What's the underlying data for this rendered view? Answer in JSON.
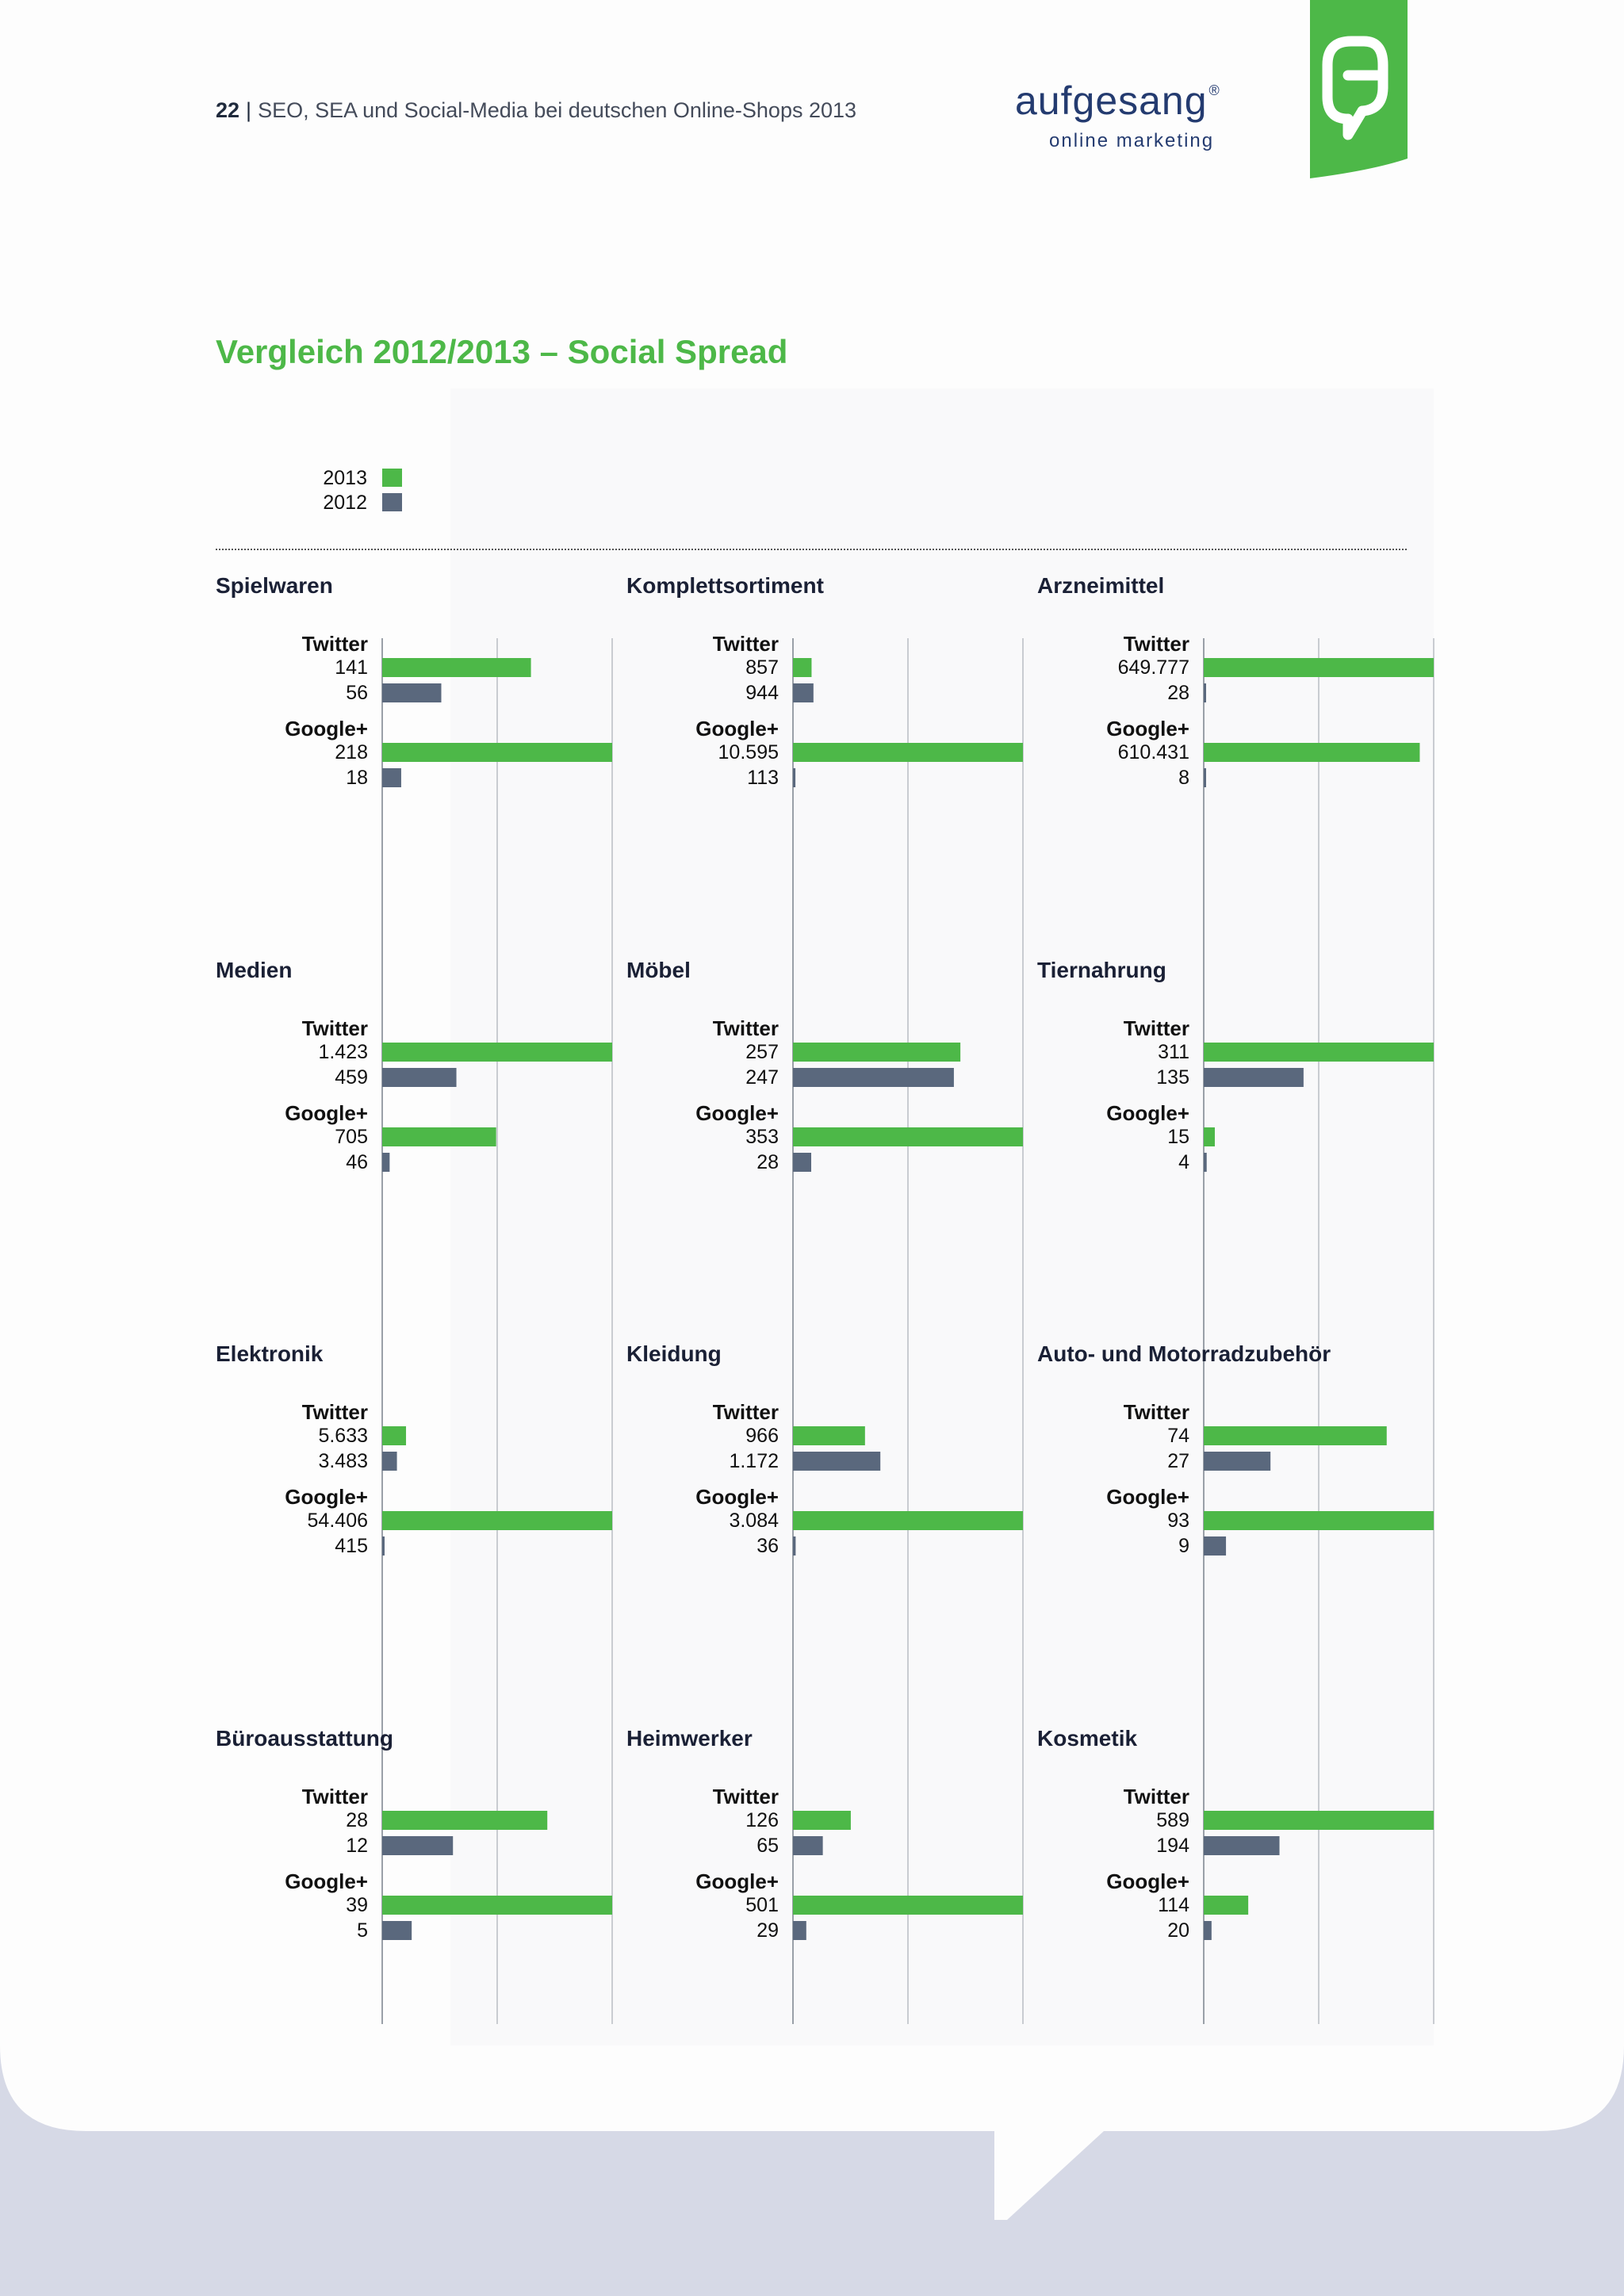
{
  "header": {
    "page_number": "22",
    "separator": "|",
    "document_title": "SEO, SEA und Social-Media bei deutschen Online-Shops 2013"
  },
  "logo": {
    "wordmark": "aufgesang",
    "registered": "®",
    "tagline": "online marketing",
    "badge_icon": "speech-bubble-a-icon"
  },
  "colors": {
    "accent_green": "#4db848",
    "series_2013": "#4db848",
    "series_2012": "#5a687d",
    "heading_navy": "#1a2035",
    "background_lavender": "#d6d9e6"
  },
  "title": "Vergleich 2012/2013 – Social Spread",
  "legend": [
    {
      "label": "2013",
      "color": "#4db848"
    },
    {
      "label": "2012",
      "color": "#5a687d"
    }
  ],
  "chart_data": [
    {
      "type": "bar",
      "orientation": "horizontal",
      "title": "Spielwaren",
      "groups": [
        {
          "name": "Twitter",
          "values": [
            {
              "series": "2013",
              "label": "141",
              "value": 141
            },
            {
              "series": "2012",
              "label": "56",
              "value": 56
            }
          ]
        },
        {
          "name": "Google+",
          "values": [
            {
              "series": "2013",
              "label": "218",
              "value": 218
            },
            {
              "series": "2012",
              "label": "18",
              "value": 18
            }
          ]
        }
      ],
      "xlim": [
        0,
        218
      ]
    },
    {
      "type": "bar",
      "orientation": "horizontal",
      "title": "Komplettsortiment",
      "groups": [
        {
          "name": "Twitter",
          "values": [
            {
              "series": "2013",
              "label": "857",
              "value": 857
            },
            {
              "series": "2012",
              "label": "944",
              "value": 944
            }
          ]
        },
        {
          "name": "Google+",
          "values": [
            {
              "series": "2013",
              "label": "10.595",
              "value": 10595
            },
            {
              "series": "2012",
              "label": "113",
              "value": 113
            }
          ]
        }
      ],
      "xlim": [
        0,
        10595
      ]
    },
    {
      "type": "bar",
      "orientation": "horizontal",
      "title": "Arzneimittel",
      "groups": [
        {
          "name": "Twitter",
          "values": [
            {
              "series": "2013",
              "label": "649.777",
              "value": 649777
            },
            {
              "series": "2012",
              "label": "28",
              "value": 28
            }
          ]
        },
        {
          "name": "Google+",
          "values": [
            {
              "series": "2013",
              "label": "610.431",
              "value": 610431
            },
            {
              "series": "2012",
              "label": "8",
              "value": 8
            }
          ]
        }
      ],
      "xlim": [
        0,
        649777
      ]
    },
    {
      "type": "bar",
      "orientation": "horizontal",
      "title": "Medien",
      "groups": [
        {
          "name": "Twitter",
          "values": [
            {
              "series": "2013",
              "label": "1.423",
              "value": 1423
            },
            {
              "series": "2012",
              "label": "459",
              "value": 459
            }
          ]
        },
        {
          "name": "Google+",
          "values": [
            {
              "series": "2013",
              "label": "705",
              "value": 705
            },
            {
              "series": "2012",
              "label": "46",
              "value": 46
            }
          ]
        }
      ],
      "xlim": [
        0,
        1423
      ]
    },
    {
      "type": "bar",
      "orientation": "horizontal",
      "title": "Möbel",
      "groups": [
        {
          "name": "Twitter",
          "values": [
            {
              "series": "2013",
              "label": "257",
              "value": 257
            },
            {
              "series": "2012",
              "label": "247",
              "value": 247
            }
          ]
        },
        {
          "name": "Google+",
          "values": [
            {
              "series": "2013",
              "label": "353",
              "value": 353
            },
            {
              "series": "2012",
              "label": "28",
              "value": 28
            }
          ]
        }
      ],
      "xlim": [
        0,
        353
      ]
    },
    {
      "type": "bar",
      "orientation": "horizontal",
      "title": "Tiernahrung",
      "groups": [
        {
          "name": "Twitter",
          "values": [
            {
              "series": "2013",
              "label": "311",
              "value": 311
            },
            {
              "series": "2012",
              "label": "135",
              "value": 135
            }
          ]
        },
        {
          "name": "Google+",
          "values": [
            {
              "series": "2013",
              "label": "15",
              "value": 15
            },
            {
              "series": "2012",
              "label": "4",
              "value": 4
            }
          ]
        }
      ],
      "xlim": [
        0,
        311
      ]
    },
    {
      "type": "bar",
      "orientation": "horizontal",
      "title": "Elektronik",
      "groups": [
        {
          "name": "Twitter",
          "values": [
            {
              "series": "2013",
              "label": "5.633",
              "value": 5633
            },
            {
              "series": "2012",
              "label": "3.483",
              "value": 3483
            }
          ]
        },
        {
          "name": "Google+",
          "values": [
            {
              "series": "2013",
              "label": "54.406",
              "value": 54406
            },
            {
              "series": "2012",
              "label": "415",
              "value": 415
            }
          ]
        }
      ],
      "xlim": [
        0,
        54406
      ]
    },
    {
      "type": "bar",
      "orientation": "horizontal",
      "title": "Kleidung",
      "groups": [
        {
          "name": "Twitter",
          "values": [
            {
              "series": "2013",
              "label": "966",
              "value": 966
            },
            {
              "series": "2012",
              "label": "1.172",
              "value": 1172
            }
          ]
        },
        {
          "name": "Google+",
          "values": [
            {
              "series": "2013",
              "label": "3.084",
              "value": 3084
            },
            {
              "series": "2012",
              "label": "36",
              "value": 36
            }
          ]
        }
      ],
      "xlim": [
        0,
        3084
      ]
    },
    {
      "type": "bar",
      "orientation": "horizontal",
      "title": "Auto- und Motorradzubehör",
      "groups": [
        {
          "name": "Twitter",
          "values": [
            {
              "series": "2013",
              "label": "74",
              "value": 74
            },
            {
              "series": "2012",
              "label": "27",
              "value": 27
            }
          ]
        },
        {
          "name": "Google+",
          "values": [
            {
              "series": "2013",
              "label": "93",
              "value": 93
            },
            {
              "series": "2012",
              "label": "9",
              "value": 9
            }
          ]
        }
      ],
      "xlim": [
        0,
        93
      ]
    },
    {
      "type": "bar",
      "orientation": "horizontal",
      "title": "Büroausstattung",
      "groups": [
        {
          "name": "Twitter",
          "values": [
            {
              "series": "2013",
              "label": "28",
              "value": 28
            },
            {
              "series": "2012",
              "label": "12",
              "value": 12
            }
          ]
        },
        {
          "name": "Google+",
          "values": [
            {
              "series": "2013",
              "label": "39",
              "value": 39
            },
            {
              "series": "2012",
              "label": "5",
              "value": 5
            }
          ]
        }
      ],
      "xlim": [
        0,
        39
      ]
    },
    {
      "type": "bar",
      "orientation": "horizontal",
      "title": "Heimwerker",
      "groups": [
        {
          "name": "Twitter",
          "values": [
            {
              "series": "2013",
              "label": "126",
              "value": 126
            },
            {
              "series": "2012",
              "label": "65",
              "value": 65
            }
          ]
        },
        {
          "name": "Google+",
          "values": [
            {
              "series": "2013",
              "label": "501",
              "value": 501
            },
            {
              "series": "2012",
              "label": "29",
              "value": 29
            }
          ]
        }
      ],
      "xlim": [
        0,
        501
      ]
    },
    {
      "type": "bar",
      "orientation": "horizontal",
      "title": "Kosmetik",
      "groups": [
        {
          "name": "Twitter",
          "values": [
            {
              "series": "2013",
              "label": "589",
              "value": 589
            },
            {
              "series": "2012",
              "label": "194",
              "value": 194
            }
          ]
        },
        {
          "name": "Google+",
          "values": [
            {
              "series": "2013",
              "label": "114",
              "value": 114
            },
            {
              "series": "2012",
              "label": "20",
              "value": 20
            }
          ]
        }
      ],
      "xlim": [
        0,
        589
      ]
    }
  ]
}
